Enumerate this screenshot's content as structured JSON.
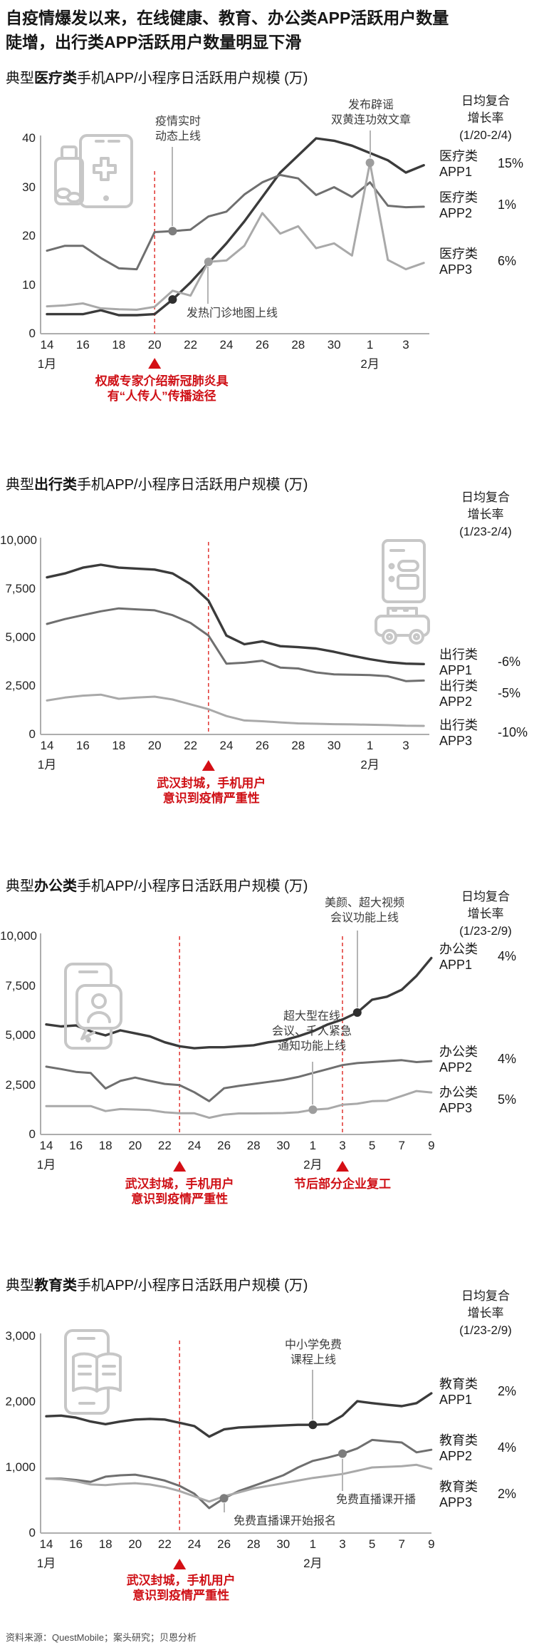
{
  "main_title": {
    "line1": "自疫情爆发以来，在线健康、教育、办公类APP活跃用户数量",
    "line2": "陡增，出行类APP活跃用户数量明显下滑"
  },
  "footer": "资料来源：QuestMobile；案头研究；贝恩分析",
  "colors": {
    "app1_line": "#3b3b3b",
    "app2_line": "#6f6f6f",
    "app3_line": "#a9a9a9",
    "red_accent": "#cf1016",
    "red_dashed": "#e2403c",
    "axis": "#adadad",
    "icon_gray": "#c7c7c7"
  },
  "chart_data": [
    {
      "type": "line",
      "id": "medical",
      "title_prefix": "典型",
      "title_category": "医疗类",
      "title_suffix": "手机APP/小程序日活跃用户规模 (万)",
      "growth_header": [
        "日均复合",
        "增长率",
        "(1/20-2/4)"
      ],
      "icon": "medicine-bottle-phone-icon",
      "x_tick_labels": [
        "14",
        "16",
        "18",
        "20",
        "22",
        "24",
        "26",
        "28",
        "30",
        "1",
        "3"
      ],
      "x_tick_days": [
        0,
        2,
        4,
        6,
        8,
        10,
        12,
        14,
        16,
        18,
        20
      ],
      "month_labels": [
        {
          "text": "1月",
          "day": 0
        },
        {
          "text": "2月",
          "day": 18
        }
      ],
      "y_ticks": [
        {
          "v": 0,
          "label": "0"
        },
        {
          "v": 10,
          "label": "10"
        },
        {
          "v": 20,
          "label": "20"
        },
        {
          "v": 30,
          "label": "30"
        },
        {
          "v": 40,
          "label": "40"
        }
      ],
      "ylim": [
        0,
        40
      ],
      "x_range": "1月14日-2月4日",
      "series": [
        {
          "name_lines": [
            "医疗类",
            "APP1"
          ],
          "pct": "15%",
          "color": "#3b3b3b",
          "values": [
            4,
            4,
            4,
            4.8,
            3.8,
            3.8,
            4,
            7,
            10.5,
            14.5,
            18.5,
            23,
            28,
            33,
            36.5,
            40,
            39.5,
            38.5,
            37,
            35.5,
            33,
            34.5
          ]
        },
        {
          "name_lines": [
            "医疗类",
            "APP2"
          ],
          "pct": "1%",
          "color": "#6f6f6f",
          "values": [
            17,
            18,
            18,
            15.5,
            13.4,
            13.2,
            20.8,
            21,
            21.3,
            24,
            25,
            28.5,
            31,
            32.5,
            31.8,
            28.4,
            30,
            28,
            31,
            26.2,
            25.9,
            26
          ]
        },
        {
          "name_lines": [
            "医疗类",
            "APP3"
          ],
          "pct": "6%",
          "color": "#a9a9a9",
          "values": [
            5.6,
            5.8,
            6.2,
            5.2,
            5,
            4.9,
            5.5,
            8.8,
            7.8,
            14.7,
            15,
            18,
            24.7,
            20.5,
            22,
            17.5,
            18.5,
            16,
            35,
            15.1,
            13.2,
            14.5
          ]
        }
      ],
      "events": [
        {
          "lines": [
            "疫情实时",
            "动态上线"
          ],
          "series": 1,
          "day": 7
        },
        {
          "lines": [
            "发热门诊地图上线"
          ],
          "series": 0,
          "day": 7,
          "extra_dot": {
            "series": 2,
            "day": 9
          }
        },
        {
          "lines": [
            "发布辟谣",
            "双黄连功效文章"
          ],
          "series": 2,
          "day": 18
        }
      ],
      "red_markers": [
        {
          "day": 6,
          "lines": [
            "权威专家介绍新冠肺炎具",
            "有“人传人”传播途径"
          ]
        }
      ]
    },
    {
      "type": "line",
      "id": "travel",
      "title_prefix": "典型",
      "title_category": "出行类",
      "title_suffix": "手机APP/小程序日活跃用户规模 (万)",
      "growth_header": [
        "日均复合",
        "增长率",
        "(1/23-2/4)"
      ],
      "icon": "taxi-meter-icon",
      "x_tick_labels": [
        "14",
        "16",
        "18",
        "20",
        "22",
        "24",
        "26",
        "28",
        "30",
        "1",
        "3"
      ],
      "x_tick_days": [
        0,
        2,
        4,
        6,
        8,
        10,
        12,
        14,
        16,
        18,
        20
      ],
      "month_labels": [
        {
          "text": "1月",
          "day": 0
        },
        {
          "text": "2月",
          "day": 18
        }
      ],
      "y_ticks": [
        {
          "v": 0,
          "label": "0"
        },
        {
          "v": 2500,
          "label": "2,500"
        },
        {
          "v": 5000,
          "label": "5,000"
        },
        {
          "v": 7500,
          "label": "7,500"
        },
        {
          "v": 10000,
          "label": "10,000"
        }
      ],
      "ylim": [
        0,
        10000
      ],
      "x_range": "1月14日-2月4日",
      "series": [
        {
          "name_lines": [
            "出行类",
            "APP1"
          ],
          "pct": "-6%",
          "color": "#3b3b3b",
          "values": [
            8100,
            8300,
            8600,
            8750,
            8600,
            8550,
            8500,
            8300,
            7750,
            6900,
            5100,
            4650,
            4800,
            4550,
            4500,
            4430,
            4260,
            4060,
            3880,
            3730,
            3650,
            3630
          ]
        },
        {
          "name_lines": [
            "出行类",
            "APP2"
          ],
          "pct": "-5%",
          "color": "#6f6f6f",
          "values": [
            5700,
            5950,
            6150,
            6350,
            6500,
            6450,
            6400,
            6150,
            5750,
            5100,
            3650,
            3700,
            3800,
            3450,
            3400,
            3200,
            3100,
            3080,
            3060,
            3000,
            2750,
            2780
          ]
        },
        {
          "name_lines": [
            "出行类",
            "APP3"
          ],
          "pct": "-10%",
          "color": "#a9a9a9",
          "values": [
            1750,
            1900,
            2000,
            2050,
            1840,
            1900,
            1950,
            1800,
            1550,
            1300,
            950,
            720,
            680,
            620,
            570,
            550,
            530,
            520,
            500,
            480,
            450,
            440
          ]
        }
      ],
      "events": [],
      "red_markers": [
        {
          "day": 9,
          "lines": [
            "武汉封城，手机用户",
            "意识到疫情严重性"
          ]
        }
      ]
    },
    {
      "type": "line",
      "id": "office",
      "title_prefix": "典型",
      "title_category": "办公类",
      "title_suffix": "手机APP/小程序日活跃用户规模 (万)",
      "growth_header": [
        "日均复合",
        "增长率",
        "(1/23-2/9)"
      ],
      "icon": "video-chat-phone-icon",
      "x_tick_labels": [
        "14",
        "16",
        "18",
        "20",
        "22",
        "24",
        "26",
        "28",
        "30",
        "1",
        "3",
        "5",
        "7",
        "9"
      ],
      "x_tick_days": [
        0,
        2,
        4,
        6,
        8,
        10,
        12,
        14,
        16,
        18,
        20,
        22,
        24,
        26
      ],
      "month_labels": [
        {
          "text": "1月",
          "day": 0
        },
        {
          "text": "2月",
          "day": 18
        }
      ],
      "y_ticks": [
        {
          "v": 0,
          "label": "0"
        },
        {
          "v": 2500,
          "label": "2,500"
        },
        {
          "v": 5000,
          "label": "5,000"
        },
        {
          "v": 7500,
          "label": "7,500"
        },
        {
          "v": 10000,
          "label": "10,000"
        }
      ],
      "ylim": [
        0,
        10000
      ],
      "x_range": "1月14日-2月9日",
      "series": [
        {
          "name_lines": [
            "办公类",
            "APP1"
          ],
          "pct": "4%",
          "color": "#3b3b3b",
          "values": [
            5550,
            5450,
            5500,
            5200,
            5000,
            5250,
            5100,
            4950,
            4650,
            4450,
            4350,
            4400,
            4400,
            4450,
            4500,
            4650,
            4750,
            4950,
            5200,
            5550,
            5800,
            6150,
            6800,
            6950,
            7300,
            8000,
            8900
          ]
        },
        {
          "name_lines": [
            "办公类",
            "APP2"
          ],
          "pct": "4%",
          "color": "#6f6f6f",
          "values": [
            3420,
            3300,
            3160,
            3100,
            2320,
            2700,
            2870,
            2700,
            2550,
            2490,
            2130,
            1680,
            2330,
            2450,
            2550,
            2650,
            2750,
            2900,
            3100,
            3300,
            3500,
            3600,
            3650,
            3700,
            3750,
            3650,
            3700
          ]
        },
        {
          "name_lines": [
            "办公类",
            "APP3"
          ],
          "pct": "5%",
          "color": "#a9a9a9",
          "values": [
            1430,
            1430,
            1430,
            1430,
            1180,
            1280,
            1260,
            1230,
            1120,
            1070,
            1070,
            840,
            1000,
            1060,
            1060,
            1070,
            1080,
            1120,
            1250,
            1300,
            1500,
            1550,
            1680,
            1700,
            1940,
            2190,
            2120
          ]
        }
      ],
      "events": [
        {
          "lines": [
            "超大型在线",
            "会议、千人紧急",
            "通知功能上线"
          ],
          "series": 2,
          "day": 18
        },
        {
          "lines": [
            "美颜、超大视频",
            "会议功能上线"
          ],
          "series": 0,
          "day": 21
        }
      ],
      "red_markers": [
        {
          "day": 9,
          "lines": [
            "武汉封城，手机用户",
            "意识到疫情严重性"
          ]
        },
        {
          "day": 20,
          "lines": [
            "节后部分企业复工"
          ]
        }
      ]
    },
    {
      "type": "line",
      "id": "education",
      "title_prefix": "典型",
      "title_category": "教育类",
      "title_suffix": "手机APP/小程序日活跃用户规模 (万)",
      "growth_header": [
        "日均复合",
        "增长率",
        "(1/23-2/9)"
      ],
      "icon": "open-book-phone-icon",
      "x_tick_labels": [
        "14",
        "16",
        "18",
        "20",
        "22",
        "24",
        "26",
        "28",
        "30",
        "1",
        "3",
        "5",
        "7",
        "9"
      ],
      "x_tick_days": [
        0,
        2,
        4,
        6,
        8,
        10,
        12,
        14,
        16,
        18,
        20,
        22,
        24,
        26
      ],
      "month_labels": [
        {
          "text": "1月",
          "day": 0
        },
        {
          "text": "2月",
          "day": 18
        }
      ],
      "y_ticks": [
        {
          "v": 0,
          "label": "0"
        },
        {
          "v": 1000,
          "label": "1,000"
        },
        {
          "v": 2000,
          "label": "2,000"
        },
        {
          "v": 3000,
          "label": "3,000"
        }
      ],
      "ylim": [
        0,
        3000
      ],
      "x_range": "1月14日-2月9日",
      "series": [
        {
          "name_lines": [
            "教育类",
            "APP1"
          ],
          "pct": "2%",
          "color": "#3b3b3b",
          "values": [
            1780,
            1790,
            1760,
            1700,
            1660,
            1700,
            1730,
            1740,
            1730,
            1680,
            1630,
            1470,
            1580,
            1610,
            1620,
            1630,
            1640,
            1650,
            1650,
            1660,
            1790,
            2010,
            1980,
            1955,
            1935,
            1980,
            2130
          ]
        },
        {
          "name_lines": [
            "教育类",
            "APP2"
          ],
          "pct": "4%",
          "color": "#6f6f6f",
          "values": [
            830,
            830,
            810,
            780,
            860,
            880,
            890,
            850,
            800,
            720,
            600,
            380,
            530,
            640,
            720,
            800,
            880,
            1000,
            1100,
            1150,
            1210,
            1290,
            1420,
            1400,
            1380,
            1230,
            1270
          ]
        },
        {
          "name_lines": [
            "教育类",
            "APP3"
          ],
          "pct": "2%",
          "color": "#a9a9a9",
          "values": [
            830,
            820,
            790,
            740,
            730,
            750,
            760,
            740,
            700,
            640,
            560,
            480,
            560,
            620,
            680,
            720,
            760,
            800,
            840,
            870,
            900,
            950,
            1000,
            1010,
            1020,
            1040,
            980
          ]
        }
      ],
      "events": [
        {
          "lines": [
            "中小学免费",
            "课程上线"
          ],
          "series": 0,
          "day": 18
        },
        {
          "lines": [
            "免费直播课开播"
          ],
          "series": 1,
          "day": 20
        },
        {
          "lines": [
            "免费直播课开始报名"
          ],
          "series": 1,
          "day": 12
        }
      ],
      "red_markers": [
        {
          "day": 9,
          "lines": [
            "武汉封城，手机用户",
            "意识到疫情严重性"
          ]
        }
      ]
    }
  ]
}
